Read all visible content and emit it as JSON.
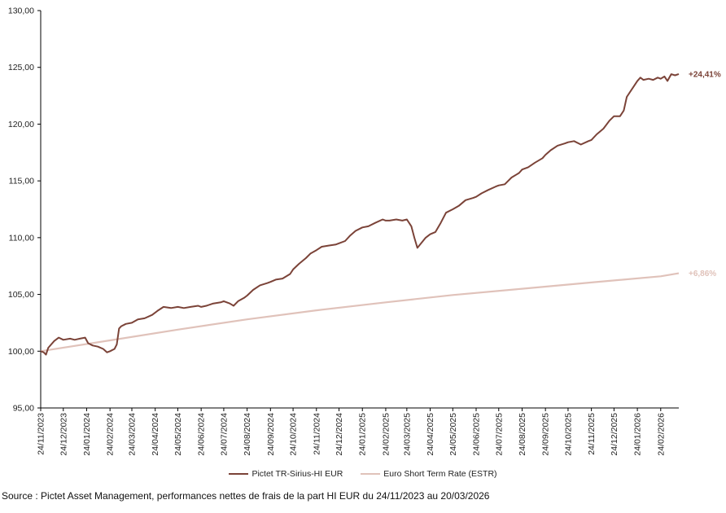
{
  "chart_data": {
    "type": "line",
    "title": "",
    "xlabel": "",
    "ylabel": "",
    "ylim": [
      95,
      130
    ],
    "yticks": [
      "95,00",
      "100,00",
      "105,00",
      "110,00",
      "115,00",
      "120,00",
      "125,00",
      "130,00"
    ],
    "xlim": [
      "2023-11-24",
      "2026-03-20"
    ],
    "xticks": [
      "24/11/2023",
      "24/12/2023",
      "24/01/2024",
      "24/02/2024",
      "24/03/2024",
      "24/04/2024",
      "24/05/2024",
      "24/06/2024",
      "24/07/2024",
      "24/08/2024",
      "24/09/2024",
      "24/10/2024",
      "24/11/2024",
      "24/12/2024",
      "24/01/2025",
      "24/02/2025",
      "24/03/2025",
      "24/04/2025",
      "24/05/2025",
      "24/06/2025",
      "24/07/2025",
      "24/08/2025",
      "24/09/2025",
      "24/10/2025",
      "24/11/2025",
      "24/12/2025",
      "24/01/2026",
      "24/02/2026"
    ],
    "grid": false,
    "legend_position": "bottom",
    "series": [
      {
        "name": "Pictet TR-Sirius-HI EUR",
        "color": "#7b4338",
        "end_label": "+24,41%",
        "points": [
          [
            "2023-11-24",
            100.0
          ],
          [
            "2023-11-28",
            99.9
          ],
          [
            "2023-12-01",
            99.7
          ],
          [
            "2023-12-04",
            100.3
          ],
          [
            "2023-12-08",
            100.6
          ],
          [
            "2023-12-12",
            100.9
          ],
          [
            "2023-12-18",
            101.2
          ],
          [
            "2023-12-24",
            101.0
          ],
          [
            "2024-01-02",
            101.1
          ],
          [
            "2024-01-08",
            101.0
          ],
          [
            "2024-01-15",
            101.1
          ],
          [
            "2024-01-22",
            101.2
          ],
          [
            "2024-01-26",
            100.7
          ],
          [
            "2024-02-01",
            100.5
          ],
          [
            "2024-02-08",
            100.4
          ],
          [
            "2024-02-15",
            100.2
          ],
          [
            "2024-02-20",
            99.9
          ],
          [
            "2024-02-24",
            100.0
          ],
          [
            "2024-03-01",
            100.2
          ],
          [
            "2024-03-04",
            100.6
          ],
          [
            "2024-03-07",
            102.0
          ],
          [
            "2024-03-10",
            102.2
          ],
          [
            "2024-03-16",
            102.4
          ],
          [
            "2024-03-24",
            102.5
          ],
          [
            "2024-04-01",
            102.8
          ],
          [
            "2024-04-10",
            102.9
          ],
          [
            "2024-04-20",
            103.2
          ],
          [
            "2024-04-28",
            103.6
          ],
          [
            "2024-05-05",
            103.9
          ],
          [
            "2024-05-15",
            103.8
          ],
          [
            "2024-05-24",
            103.9
          ],
          [
            "2024-06-01",
            103.8
          ],
          [
            "2024-06-10",
            103.9
          ],
          [
            "2024-06-20",
            104.0
          ],
          [
            "2024-06-24",
            103.9
          ],
          [
            "2024-07-01",
            104.0
          ],
          [
            "2024-07-10",
            104.2
          ],
          [
            "2024-07-20",
            104.3
          ],
          [
            "2024-07-24",
            104.4
          ],
          [
            "2024-08-01",
            104.2
          ],
          [
            "2024-08-06",
            104.0
          ],
          [
            "2024-08-12",
            104.4
          ],
          [
            "2024-08-20",
            104.7
          ],
          [
            "2024-08-24",
            104.9
          ],
          [
            "2024-09-01",
            105.4
          ],
          [
            "2024-09-10",
            105.8
          ],
          [
            "2024-09-20",
            106.0
          ],
          [
            "2024-09-24",
            106.1
          ],
          [
            "2024-10-01",
            106.3
          ],
          [
            "2024-10-10",
            106.4
          ],
          [
            "2024-10-20",
            106.8
          ],
          [
            "2024-10-24",
            107.2
          ],
          [
            "2024-11-01",
            107.7
          ],
          [
            "2024-11-10",
            108.2
          ],
          [
            "2024-11-16",
            108.6
          ],
          [
            "2024-11-24",
            108.9
          ],
          [
            "2024-12-01",
            109.2
          ],
          [
            "2024-12-10",
            109.3
          ],
          [
            "2024-12-20",
            109.4
          ],
          [
            "2024-12-24",
            109.5
          ],
          [
            "2025-01-01",
            109.7
          ],
          [
            "2025-01-08",
            110.2
          ],
          [
            "2025-01-15",
            110.6
          ],
          [
            "2025-01-24",
            110.9
          ],
          [
            "2025-02-01",
            111.0
          ],
          [
            "2025-02-10",
            111.3
          ],
          [
            "2025-02-20",
            111.6
          ],
          [
            "2025-02-24",
            111.5
          ],
          [
            "2025-03-01",
            111.5
          ],
          [
            "2025-03-10",
            111.6
          ],
          [
            "2025-03-18",
            111.5
          ],
          [
            "2025-03-24",
            111.6
          ],
          [
            "2025-03-30",
            111.0
          ],
          [
            "2025-04-03",
            110.0
          ],
          [
            "2025-04-07",
            109.1
          ],
          [
            "2025-04-12",
            109.5
          ],
          [
            "2025-04-18",
            110.0
          ],
          [
            "2025-04-24",
            110.3
          ],
          [
            "2025-05-01",
            110.5
          ],
          [
            "2025-05-08",
            111.3
          ],
          [
            "2025-05-15",
            112.2
          ],
          [
            "2025-05-24",
            112.5
          ],
          [
            "2025-06-01",
            112.8
          ],
          [
            "2025-06-10",
            113.3
          ],
          [
            "2025-06-20",
            113.5
          ],
          [
            "2025-06-24",
            113.6
          ],
          [
            "2025-07-01",
            113.9
          ],
          [
            "2025-07-10",
            114.2
          ],
          [
            "2025-07-20",
            114.5
          ],
          [
            "2025-07-24",
            114.6
          ],
          [
            "2025-08-01",
            114.7
          ],
          [
            "2025-08-10",
            115.3
          ],
          [
            "2025-08-20",
            115.7
          ],
          [
            "2025-08-24",
            116.0
          ],
          [
            "2025-09-01",
            116.2
          ],
          [
            "2025-09-10",
            116.6
          ],
          [
            "2025-09-20",
            117.0
          ],
          [
            "2025-09-24",
            117.3
          ],
          [
            "2025-10-01",
            117.7
          ],
          [
            "2025-10-10",
            118.1
          ],
          [
            "2025-10-20",
            118.3
          ],
          [
            "2025-10-24",
            118.4
          ],
          [
            "2025-11-01",
            118.5
          ],
          [
            "2025-11-10",
            118.2
          ],
          [
            "2025-11-20",
            118.5
          ],
          [
            "2025-11-24",
            118.6
          ],
          [
            "2025-12-01",
            119.1
          ],
          [
            "2025-12-10",
            119.6
          ],
          [
            "2025-12-18",
            120.3
          ],
          [
            "2025-12-24",
            120.7
          ],
          [
            "2026-01-01",
            120.7
          ],
          [
            "2026-01-06",
            121.2
          ],
          [
            "2026-01-10",
            122.4
          ],
          [
            "2026-01-16",
            123.0
          ],
          [
            "2026-01-24",
            123.8
          ],
          [
            "2026-01-28",
            124.1
          ],
          [
            "2026-02-01",
            123.9
          ],
          [
            "2026-02-08",
            124.0
          ],
          [
            "2026-02-14",
            123.9
          ],
          [
            "2026-02-20",
            124.1
          ],
          [
            "2026-02-24",
            124.0
          ],
          [
            "2026-03-01",
            124.2
          ],
          [
            "2026-03-05",
            123.8
          ],
          [
            "2026-03-10",
            124.4
          ],
          [
            "2026-03-15",
            124.3
          ],
          [
            "2026-03-20",
            124.41
          ]
        ]
      },
      {
        "name": "Euro Short Term Rate (ESTR)",
        "color": "#e0c2ba",
        "end_label": "+6,86%",
        "points": [
          [
            "2023-11-24",
            100.0
          ],
          [
            "2024-02-24",
            100.95
          ],
          [
            "2024-05-24",
            101.9
          ],
          [
            "2024-08-24",
            102.8
          ],
          [
            "2024-11-24",
            103.6
          ],
          [
            "2025-02-24",
            104.3
          ],
          [
            "2025-05-24",
            104.95
          ],
          [
            "2025-08-24",
            105.5
          ],
          [
            "2025-11-24",
            106.05
          ],
          [
            "2026-02-24",
            106.6
          ],
          [
            "2026-03-20",
            106.86
          ]
        ]
      }
    ]
  },
  "source_text": "Source : Pictet Asset Management, performances nettes de frais de la part HI EUR du 24/11/2023 au 20/03/2026"
}
